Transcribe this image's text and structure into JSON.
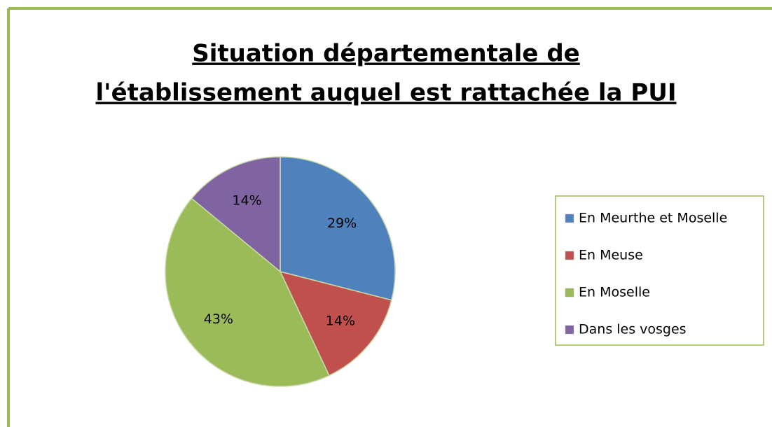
{
  "chart_data": {
    "type": "pie",
    "title": [
      "Situation départementale de",
      "l'établissement auquel est rattachée la PUI"
    ],
    "categories": [
      "En Meurthe et Moselle",
      "En Meuse",
      "En Moselle",
      "Dans les vosges"
    ],
    "values": [
      29,
      14,
      43,
      14
    ],
    "value_labels": [
      "29%",
      "14%",
      "43%",
      "14%"
    ],
    "colors": [
      "#4f81bd",
      "#c0504d",
      "#9bbb59",
      "#8064a2"
    ],
    "legend": "right"
  }
}
